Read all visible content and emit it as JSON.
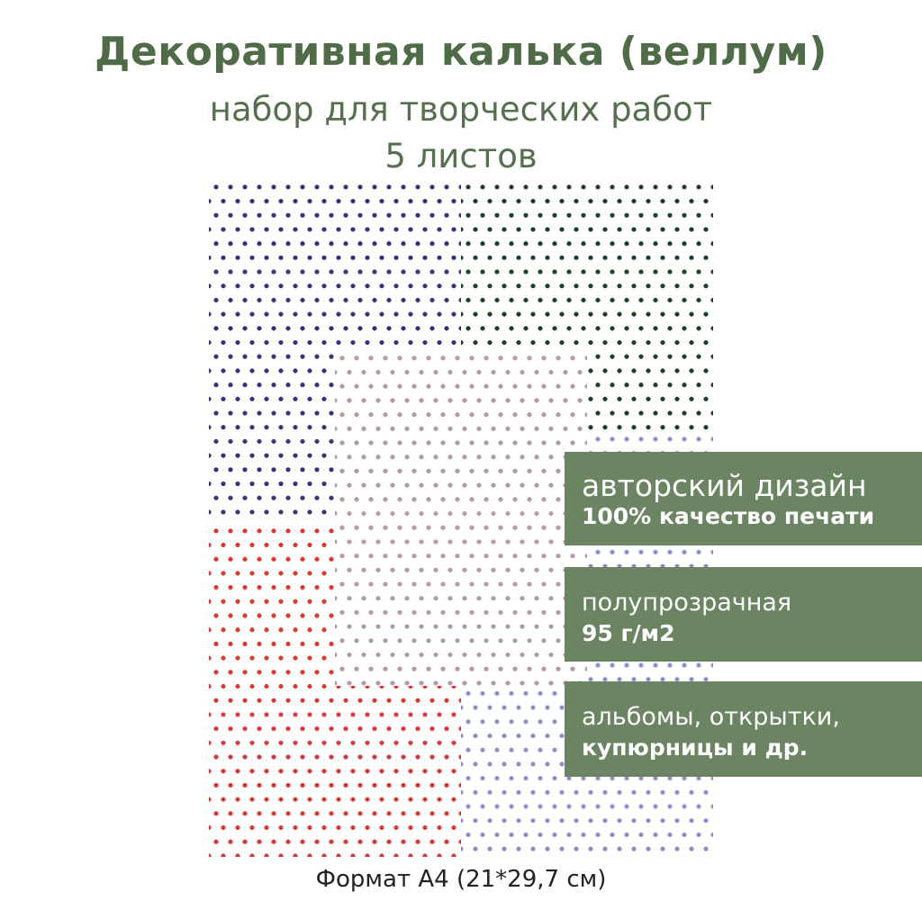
{
  "header": {
    "title": "Декоративная калька (веллум)",
    "subtitle": "набор для творческих работ",
    "count": "5 листов"
  },
  "sheets": [
    {
      "name": "navy",
      "color": "#3d2f7a"
    },
    {
      "name": "green",
      "color": "#1f3d22"
    },
    {
      "name": "red",
      "color": "#d63a36"
    },
    {
      "name": "light-blue",
      "color": "#8a92c8"
    },
    {
      "name": "pink",
      "color": "#b59a9e"
    }
  ],
  "features": [
    {
      "line1": "авторский дизайн",
      "line2": "100% качество печати"
    },
    {
      "line1": "полупрозрачная",
      "line2": "95 г/м2"
    },
    {
      "line1": "альбомы, открытки,",
      "line2": "купюрницы и др."
    }
  ],
  "footer": {
    "format": "Формат А4 (21*29,7 см)"
  },
  "colors": {
    "title": "#4f6b48",
    "box": "#6b8462"
  }
}
